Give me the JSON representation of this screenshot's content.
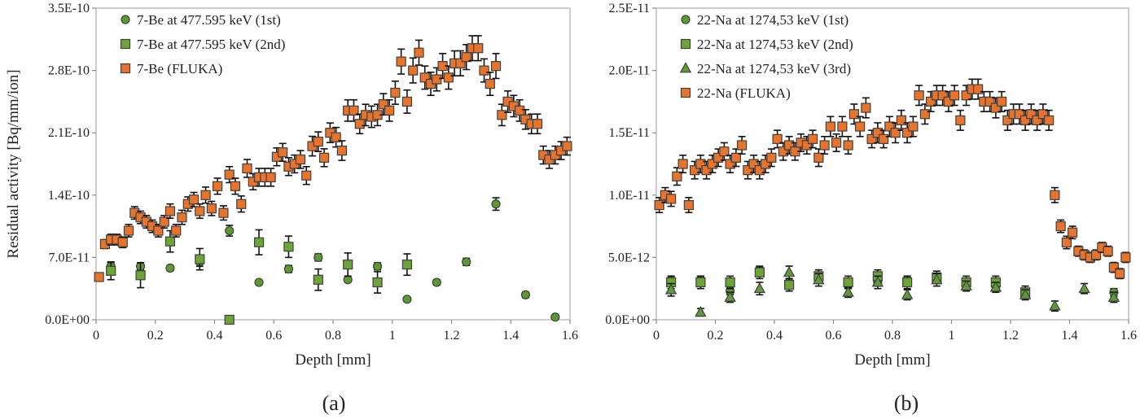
{
  "chart_data": [
    {
      "type": "scatter",
      "caption": "(a)",
      "xlabel": "Depth [mm]",
      "ylabel": "Residual activity [Bq/mm/ion]",
      "xlim": [
        0,
        1.6
      ],
      "ylim": [
        0,
        3.5e-10
      ],
      "xticks": [
        0,
        0.2,
        0.4,
        0.6,
        0.8,
        1,
        1.2,
        1.4,
        1.6
      ],
      "xtick_labels": [
        "0",
        "0.2",
        "0.4",
        "0.6",
        "0.8",
        "1",
        "1.2",
        "1.4",
        "1.6"
      ],
      "yticks": [
        0,
        7e-11,
        1.4e-10,
        2.1e-10,
        2.8e-10,
        3.5e-10
      ],
      "ytick_labels": [
        "0.0E+00",
        "7.0E-11",
        "1.4E-10",
        "2.1E-10",
        "2.8E-10",
        "3.5E-10"
      ],
      "grid": false,
      "legend_position": "top-left",
      "series": [
        {
          "name": "7-Be at 477.595 keV (1st)",
          "marker": "circle",
          "color": "#5b9a2f",
          "x": [
            0.05,
            0.15,
            0.25,
            0.35,
            0.45,
            0.55,
            0.65,
            0.75,
            0.85,
            0.95,
            1.05,
            1.15,
            1.25,
            1.35,
            1.45,
            1.55
          ],
          "y": [
            6e-11,
            6e-11,
            5.8e-11,
            6.5e-11,
            1e-10,
            4.2e-11,
            5.7e-11,
            7e-11,
            4.5e-11,
            6e-11,
            2.3e-11,
            4.2e-11,
            6.5e-11,
            1.3e-10,
            2.8e-11,
            3e-12
          ],
          "err": [
            4e-12,
            4e-12,
            3e-12,
            5e-12,
            6e-12,
            2e-12,
            4e-12,
            4e-12,
            2e-12,
            4e-12,
            2e-12,
            3e-12,
            4e-12,
            7e-12,
            3e-12,
            2e-12
          ]
        },
        {
          "name": "7-Be at 477.595 keV (2nd)",
          "marker": "square",
          "color": "#6aa535",
          "x": [
            0.05,
            0.15,
            0.25,
            0.35,
            0.45,
            0.55,
            0.65,
            0.75,
            0.85,
            0.95,
            1.05
          ],
          "y": [
            5.5e-11,
            5e-11,
            8.8e-11,
            6.8e-11,
            0,
            8.7e-11,
            8.2e-11,
            4.5e-11,
            6.2e-11,
            4.2e-11,
            6.2e-11
          ],
          "err": [
            1e-11,
            1.4e-11,
            1.2e-11,
            1.2e-11,
            0,
            1.4e-11,
            1.2e-11,
            1.2e-11,
            1.3e-11,
            1.2e-11,
            1.2e-11
          ]
        },
        {
          "name": "7-Be (FLUKA)",
          "marker": "square",
          "color": "#e8742c",
          "x": [
            0.01,
            0.03,
            0.05,
            0.07,
            0.09,
            0.11,
            0.13,
            0.15,
            0.17,
            0.19,
            0.21,
            0.23,
            0.25,
            0.27,
            0.29,
            0.31,
            0.33,
            0.35,
            0.37,
            0.39,
            0.41,
            0.43,
            0.45,
            0.47,
            0.49,
            0.51,
            0.53,
            0.55,
            0.57,
            0.59,
            0.61,
            0.63,
            0.65,
            0.67,
            0.69,
            0.71,
            0.73,
            0.75,
            0.77,
            0.79,
            0.81,
            0.83,
            0.85,
            0.87,
            0.89,
            0.91,
            0.93,
            0.95,
            0.97,
            0.99,
            1.01,
            1.03,
            1.05,
            1.07,
            1.09,
            1.11,
            1.13,
            1.15,
            1.17,
            1.19,
            1.21,
            1.23,
            1.25,
            1.27,
            1.29,
            1.31,
            1.33,
            1.35,
            1.37,
            1.39,
            1.41,
            1.43,
            1.45,
            1.47,
            1.49,
            1.51,
            1.53,
            1.55,
            1.57,
            1.59
          ],
          "y": [
            4.8e-11,
            8.5e-11,
            9e-11,
            9e-11,
            8.7e-11,
            1e-10,
            1.2e-10,
            1.15e-10,
            1.1e-10,
            1.05e-10,
            1e-10,
            1.1e-10,
            1.22e-10,
            1e-10,
            1.15e-10,
            1.3e-10,
            1.35e-10,
            1.22e-10,
            1.4e-10,
            1.25e-10,
            1.5e-10,
            1.2e-10,
            1.63e-10,
            1.5e-10,
            1.3e-10,
            1.7e-10,
            1.55e-10,
            1.6e-10,
            1.6e-10,
            1.6e-10,
            1.83e-10,
            1.88e-10,
            1.72e-10,
            1.75e-10,
            1.8e-10,
            1.62e-10,
            1.95e-10,
            2e-10,
            1.82e-10,
            2.1e-10,
            2.05e-10,
            1.9e-10,
            2.35e-10,
            2.35e-10,
            2.2e-10,
            2.3e-10,
            2.28e-10,
            2.3e-10,
            2.42e-10,
            2.35e-10,
            2.55e-10,
            2.9e-10,
            2.45e-10,
            2.8e-10,
            3e-10,
            2.72e-10,
            2.65e-10,
            2.7e-10,
            2.85e-10,
            2.72e-10,
            2.88e-10,
            2.88e-10,
            2.95e-10,
            3.05e-10,
            3.05e-10,
            2.8e-10,
            2.65e-10,
            2.85e-10,
            2.3e-10,
            2.45e-10,
            2.4e-10,
            2.35e-10,
            2.25e-10,
            2.2e-10,
            2.2e-10,
            1.85e-10,
            1.8e-10,
            1.85e-10,
            1.9e-10,
            1.95e-10
          ],
          "err": [
            3e-12,
            5e-12,
            6e-12,
            6e-12,
            6e-12,
            7e-12,
            7e-12,
            7e-12,
            7e-12,
            7e-12,
            7e-12,
            7e-12,
            8e-12,
            7e-12,
            8e-12,
            8e-12,
            8e-12,
            8e-12,
            9e-12,
            8e-12,
            9e-12,
            8e-12,
            9e-12,
            9e-12,
            9e-12,
            1e-11,
            9e-12,
            1e-11,
            1e-11,
            1e-11,
            1e-11,
            1e-11,
            1e-11,
            1e-11,
            1e-11,
            1e-11,
            1.1e-11,
            1.1e-11,
            1e-11,
            1.1e-11,
            1.1e-11,
            1.1e-11,
            1.2e-11,
            1.2e-11,
            1.1e-11,
            1.2e-11,
            1.2e-11,
            1.2e-11,
            1.2e-11,
            1.2e-11,
            1.3e-11,
            1.4e-11,
            1.3e-11,
            1.4e-11,
            1.4e-11,
            1.3e-11,
            1.3e-11,
            1.3e-11,
            1.4e-11,
            1.3e-11,
            1.4e-11,
            1.4e-11,
            1.4e-11,
            1.4e-11,
            1.4e-11,
            1.3e-11,
            1.3e-11,
            1.4e-11,
            1.2e-11,
            1.2e-11,
            1.2e-11,
            1.2e-11,
            1.1e-11,
            1.1e-11,
            1.1e-11,
            1e-11,
            1e-11,
            1e-11,
            1e-11,
            1e-11
          ]
        }
      ]
    },
    {
      "type": "scatter",
      "caption": "(b)",
      "xlabel": "Depth [mm]",
      "ylabel": "",
      "xlim": [
        0,
        1.6
      ],
      "ylim": [
        0,
        2.5e-11
      ],
      "xticks": [
        0,
        0.2,
        0.4,
        0.6,
        0.8,
        1,
        1.2,
        1.4,
        1.6
      ],
      "xtick_labels": [
        "0",
        "0.2",
        "0.4",
        "0.6",
        "0.8",
        "1",
        "1.2",
        "1.4",
        "1.6"
      ],
      "yticks": [
        0,
        5e-12,
        1e-11,
        1.5e-11,
        2e-11,
        2.5e-11
      ],
      "ytick_labels": [
        "0.0E+00",
        "5.0E-12",
        "1.0E-11",
        "1.5E-11",
        "2.0E-11",
        "2.5E-11"
      ],
      "grid": false,
      "legend_position": "top-left",
      "series": [
        {
          "name": "22-Na at 1274,53 keV (1st)",
          "marker": "circle",
          "color": "#5b9a2f",
          "x": [
            0.05,
            0.15,
            0.25,
            0.35,
            0.45,
            0.55,
            0.65,
            0.75,
            0.85,
            0.95,
            1.05,
            1.15,
            1.25,
            1.55
          ],
          "y": [
            3.2e-12,
            3.2e-12,
            2.3e-12,
            3.9e-12,
            3e-12,
            3.5e-12,
            2.8e-12,
            3e-12,
            3.2e-12,
            3.2e-12,
            2.8e-12,
            2.7e-12,
            2.2e-12,
            2.2e-12
          ],
          "err": [
            3e-13,
            3e-13,
            3e-13,
            3e-13,
            3e-13,
            3e-13,
            3e-13,
            3e-13,
            3e-13,
            3e-13,
            3e-13,
            3e-13,
            3e-13,
            3e-13
          ]
        },
        {
          "name": "22-Na at 1274,53 keV (2nd)",
          "marker": "square",
          "color": "#6aa535",
          "x": [
            0.05,
            0.15,
            0.25,
            0.35,
            0.45,
            0.55,
            0.65,
            0.75,
            0.85,
            0.95,
            1.05,
            1.15,
            1.25
          ],
          "y": [
            3e-12,
            3e-12,
            3e-12,
            3.8e-12,
            2.8e-12,
            3.5e-12,
            3e-12,
            3.5e-12,
            3e-12,
            3.4e-12,
            3e-12,
            3e-12,
            2.2e-12
          ],
          "err": [
            5e-13,
            5e-13,
            5e-13,
            5e-13,
            5e-13,
            5e-13,
            5e-13,
            5e-13,
            5e-13,
            5e-13,
            5e-13,
            5e-13,
            5e-13
          ]
        },
        {
          "name": "22-Na at 1274,53 keV (3rd)",
          "marker": "triangle",
          "color": "#5e9a3a",
          "x": [
            0.05,
            0.15,
            0.25,
            0.35,
            0.45,
            0.55,
            0.65,
            0.75,
            0.85,
            0.95,
            1.05,
            1.15,
            1.25,
            1.35,
            1.45,
            1.55
          ],
          "y": [
            2.4e-12,
            6e-13,
            1.8e-12,
            2.5e-12,
            3.8e-12,
            3.2e-12,
            2.2e-12,
            3e-12,
            2e-12,
            3.2e-12,
            2.7e-12,
            2.6e-12,
            2e-12,
            1.1e-12,
            2.5e-12,
            1.8e-12
          ],
          "err": [
            5e-13,
            3e-13,
            4e-13,
            5e-13,
            5e-13,
            5e-13,
            4e-13,
            5e-13,
            4e-13,
            5e-13,
            4e-13,
            4e-13,
            4e-13,
            4e-13,
            4e-13,
            4e-13
          ]
        },
        {
          "name": "22-Na (FLUKA)",
          "marker": "square",
          "color": "#e8742c",
          "x": [
            0.01,
            0.03,
            0.05,
            0.07,
            0.09,
            0.11,
            0.13,
            0.15,
            0.17,
            0.19,
            0.21,
            0.23,
            0.25,
            0.27,
            0.29,
            0.31,
            0.33,
            0.35,
            0.37,
            0.39,
            0.41,
            0.43,
            0.45,
            0.47,
            0.49,
            0.51,
            0.53,
            0.55,
            0.57,
            0.59,
            0.61,
            0.63,
            0.65,
            0.67,
            0.69,
            0.71,
            0.73,
            0.75,
            0.77,
            0.79,
            0.81,
            0.83,
            0.85,
            0.87,
            0.89,
            0.91,
            0.93,
            0.95,
            0.97,
            0.99,
            1.01,
            1.03,
            1.05,
            1.07,
            1.09,
            1.11,
            1.13,
            1.15,
            1.17,
            1.19,
            1.21,
            1.23,
            1.25,
            1.27,
            1.29,
            1.31,
            1.33,
            1.35,
            1.37,
            1.39,
            1.41,
            1.43,
            1.45,
            1.47,
            1.49,
            1.51,
            1.53,
            1.55,
            1.57,
            1.59
          ],
          "y": [
            9.2e-12,
            1e-11,
            9.7e-12,
            1.15e-11,
            1.25e-11,
            9.2e-12,
            1.2e-11,
            1.25e-11,
            1.2e-11,
            1.25e-11,
            1.3e-11,
            1.35e-11,
            1.25e-11,
            1.3e-11,
            1.4e-11,
            1.2e-11,
            1.25e-11,
            1.2e-11,
            1.25e-11,
            1.3e-11,
            1.45e-11,
            1.35e-11,
            1.4e-11,
            1.35e-11,
            1.42e-11,
            1.4e-11,
            1.45e-11,
            1.3e-11,
            1.4e-11,
            1.55e-11,
            1.42e-11,
            1.55e-11,
            1.4e-11,
            1.65e-11,
            1.55e-11,
            1.7e-11,
            1.45e-11,
            1.5e-11,
            1.45e-11,
            1.55e-11,
            1.5e-11,
            1.6e-11,
            1.5e-11,
            1.55e-11,
            1.8e-11,
            1.65e-11,
            1.75e-11,
            1.8e-11,
            1.8e-11,
            1.75e-11,
            1.8e-11,
            1.6e-11,
            1.8e-11,
            1.85e-11,
            1.85e-11,
            1.75e-11,
            1.75e-11,
            1.7e-11,
            1.75e-11,
            1.6e-11,
            1.65e-11,
            1.65e-11,
            1.6e-11,
            1.65e-11,
            1.6e-11,
            1.65e-11,
            1.6e-11,
            1e-11,
            7.5e-12,
            6.2e-12,
            7e-12,
            5.5e-12,
            5.2e-12,
            5e-12,
            5.2e-12,
            5.8e-12,
            5.5e-12,
            4.2e-12,
            3.7e-12,
            5e-12
          ],
          "err": [
            6e-13,
            6e-13,
            6e-13,
            7e-13,
            7e-13,
            6e-13,
            7e-13,
            7e-13,
            7e-13,
            7e-13,
            7e-13,
            7e-13,
            7e-13,
            7e-13,
            7e-13,
            7e-13,
            7e-13,
            7e-13,
            7e-13,
            7e-13,
            7e-13,
            7e-13,
            7e-13,
            7e-13,
            7e-13,
            7e-13,
            7e-13,
            7e-13,
            7e-13,
            8e-13,
            7e-13,
            8e-13,
            7e-13,
            8e-13,
            8e-13,
            8e-13,
            7e-13,
            8e-13,
            7e-13,
            8e-13,
            8e-13,
            8e-13,
            8e-13,
            8e-13,
            8e-13,
            8e-13,
            8e-13,
            8e-13,
            8e-13,
            8e-13,
            8e-13,
            8e-13,
            8e-13,
            8e-13,
            8e-13,
            8e-13,
            8e-13,
            8e-13,
            8e-13,
            8e-13,
            8e-13,
            8e-13,
            8e-13,
            8e-13,
            8e-13,
            8e-13,
            8e-13,
            6e-13,
            5e-13,
            5e-13,
            5e-13,
            4e-13,
            4e-13,
            4e-13,
            4e-13,
            4e-13,
            4e-13,
            4e-13,
            4e-13,
            4e-13
          ]
        }
      ]
    }
  ]
}
